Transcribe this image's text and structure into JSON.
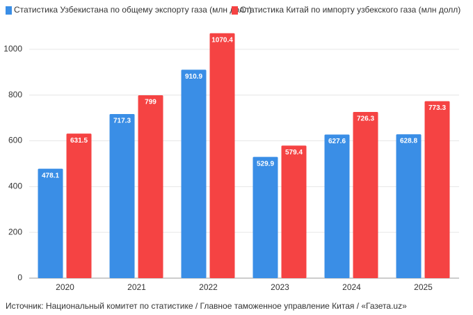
{
  "chart_data": {
    "type": "bar",
    "categories": [
      "2020",
      "2021",
      "2022",
      "2023",
      "2024",
      "2025"
    ],
    "series": [
      {
        "name": "Статистика Узбекистана по общему экспорту газа (млн долл)",
        "color": "#3a8ee6",
        "values": [
          478.1,
          717.3,
          910.9,
          529.9,
          627.6,
          628.8
        ]
      },
      {
        "name": "Статистика Китай по импорту узбекского газа (млн долл)",
        "color": "#f54343",
        "values": [
          631.5,
          799,
          1070.4,
          579.4,
          726.3,
          773.3
        ]
      }
    ],
    "ylim": [
      0,
      1100
    ],
    "yticks": [
      0,
      200,
      400,
      600,
      800,
      1000
    ],
    "grid": true,
    "source": "Источник: Национальный комитет по статистике / Главное таможенное управление Китая / «Газета.uz»"
  }
}
